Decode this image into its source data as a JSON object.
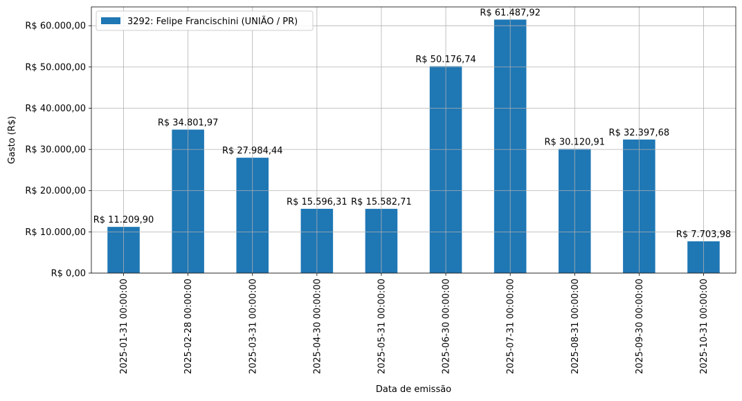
{
  "chart_data": {
    "type": "bar",
    "title": "",
    "xlabel": "Data de emissão",
    "ylabel": "Gasto (R$)",
    "categories": [
      "2025-01-31 00:00:00",
      "2025-02-28 00:00:00",
      "2025-03-31 00:00:00",
      "2025-04-30 00:00:00",
      "2025-05-31 00:00:00",
      "2025-06-30 00:00:00",
      "2025-07-31 00:00:00",
      "2025-08-31 00:00:00",
      "2025-09-30 00:00:00",
      "2025-10-31 00:00:00"
    ],
    "series": [
      {
        "name": "3292: Felipe Francischini (UNIÃO / PR)",
        "color": "#1f77b4",
        "values": [
          11209.9,
          34801.97,
          27984.44,
          15596.31,
          15582.71,
          50176.74,
          61487.92,
          30120.91,
          32397.68,
          7703.98
        ]
      }
    ],
    "data_labels": [
      "R$ 11.209,90",
      "R$ 34.801,97",
      "R$ 27.984,44",
      "R$ 15.596,31",
      "R$ 15.582,71",
      "R$ 50.176,74",
      "R$ 61.487,92",
      "R$ 30.120,91",
      "R$ 32.397,68",
      "R$ 7.703,98"
    ],
    "yticks": [
      0,
      10000,
      20000,
      30000,
      40000,
      50000,
      60000
    ],
    "ytick_labels": [
      "R$ 0,00",
      "R$ 10.000,00",
      "R$ 20.000,00",
      "R$ 30.000,00",
      "R$ 40.000,00",
      "R$ 50.000,00",
      "R$ 60.000,00"
    ],
    "ylim": [
      0,
      64562.32
    ],
    "grid": true,
    "legend_position": "top-left",
    "x_tick_rotation": "vertical"
  }
}
